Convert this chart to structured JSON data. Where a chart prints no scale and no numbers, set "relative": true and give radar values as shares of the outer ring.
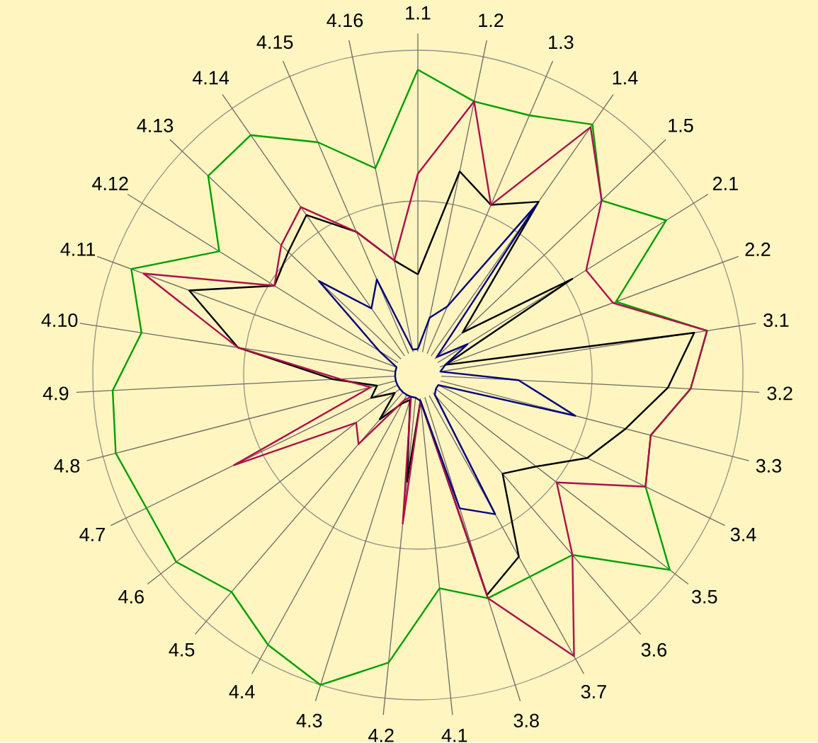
{
  "chart_data": {
    "type": "radar",
    "relative": true,
    "grid": true,
    "categories": [
      "1.1",
      "1.2",
      "1.3",
      "1.4",
      "1.5",
      "2.1",
      "2.2",
      "3.1",
      "3.2",
      "3.3",
      "3.4",
      "3.5",
      "3.6",
      "3.7",
      "3.8",
      "4.1",
      "4.2",
      "4.3",
      "4.4",
      "4.5",
      "4.6",
      "4.7",
      "4.8",
      "4.9",
      "4.10",
      "4.11",
      "4.12",
      "4.13",
      "4.14",
      "4.15",
      "4.16"
    ],
    "series": [
      {
        "color": "#00a000",
        "values": [
          0.94,
          0.86,
          0.87,
          0.94,
          0.78,
          0.9,
          0.65,
          0.9,
          0.84,
          0.74,
          0.78,
          0.98,
          0.73,
          0.71,
          0.72,
          0.66,
          0.89,
          1.0,
          0.95,
          0.88,
          0.94,
          0.93,
          0.96,
          0.94,
          0.86,
          0.94,
          0.72,
          0.89,
          0.9,
          0.78,
          0.65
        ]
      },
      {
        "color": "#000000",
        "values": [
          0.31,
          0.64,
          0.57,
          0.65,
          0.19,
          0.56,
          0.09,
          0.86,
          0.77,
          0.66,
          0.58,
          0.46,
          0.4,
          0.64,
          0.71,
          0.08,
          0.33,
          0.08,
          0.1,
          0.18,
          0.09,
          0.16,
          0.13,
          0.26,
          0.56,
          0.75,
          0.52,
          0.55,
          0.6,
          0.48,
          0.36
        ]
      },
      {
        "color": "#b0104a",
        "values": [
          0.62,
          0.86,
          0.57,
          0.93,
          0.78,
          0.61,
          0.64,
          0.9,
          0.84,
          0.74,
          0.78,
          0.54,
          0.73,
          0.99,
          0.72,
          0.08,
          0.46,
          0.07,
          0.09,
          0.28,
          0.24,
          0.63,
          0.15,
          0.24,
          0.56,
          0.9,
          0.52,
          0.58,
          0.63,
          0.48,
          0.36
        ]
      },
      {
        "color": "#000080",
        "values": [
          0.08,
          0.18,
          0.23,
          0.64,
          0.08,
          0.18,
          0.09,
          0.07,
          0.31,
          0.5,
          0.07,
          0.07,
          0.08,
          0.49,
          0.43,
          0.08,
          0.07,
          0.07,
          0.07,
          0.07,
          0.07,
          0.07,
          0.07,
          0.07,
          0.07,
          0.07,
          0.14,
          0.42,
          0.25,
          0.32,
          0.08
        ]
      }
    ]
  }
}
